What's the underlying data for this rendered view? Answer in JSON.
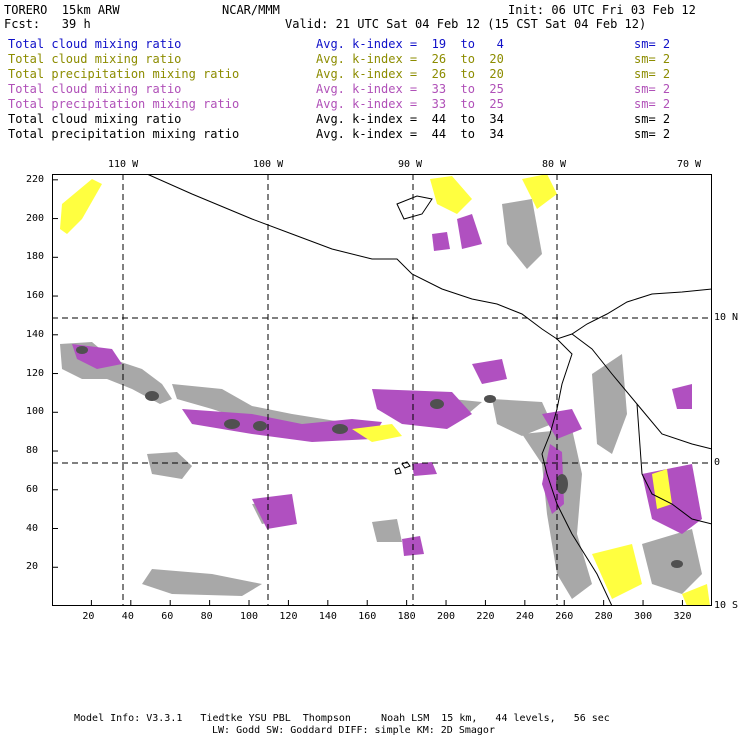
{
  "header": {
    "model": "TORERO  15km ARW",
    "center": "NCAR/MMM",
    "init": "Init: 06 UTC Fri 03 Feb 12",
    "fcst": "Fcst:   39 h",
    "valid": "Valid: 21 UTC Sat 04 Feb 12 (15 CST Sat 04 Feb 12)"
  },
  "legend": [
    {
      "field": "Total cloud mixing ratio",
      "kindex": "Avg. k-index =  19  to   4",
      "sm": "sm= 2",
      "color": "#1010c8"
    },
    {
      "field": "Total cloud mixing ratio",
      "kindex": "Avg. k-index =  26  to  20",
      "sm": "sm= 2",
      "color": "#8c8c00"
    },
    {
      "field": "Total precipitation mixing ratio",
      "kindex": "Avg. k-index =  26  to  20",
      "sm": "sm= 2",
      "color": "#8c8c00"
    },
    {
      "field": "Total cloud mixing ratio",
      "kindex": "Avg. k-index =  33  to  25",
      "sm": "sm= 2",
      "color": "#b050b8"
    },
    {
      "field": "Total precipitation mixing ratio",
      "kindex": "Avg. k-index =  33  to  25",
      "sm": "sm= 2",
      "color": "#b050b8"
    },
    {
      "field": "Total cloud mixing ratio",
      "kindex": "Avg. k-index =  44  to  34",
      "sm": "sm= 2",
      "color": "#000000"
    },
    {
      "field": "Total precipitation mixing ratio",
      "kindex": "Avg. k-index =  44  to  34",
      "sm": "sm= 2",
      "color": "#000000"
    }
  ],
  "axes": {
    "lon_labels": [
      "110 W",
      "100 W",
      "90 W",
      "80 W",
      "70 W"
    ],
    "lat_labels": [
      "10 N",
      "0",
      "10 S"
    ],
    "x_ticks": [
      20,
      40,
      60,
      80,
      100,
      120,
      140,
      160,
      180,
      200,
      220,
      240,
      260,
      280,
      300,
      320
    ],
    "y_ticks": [
      220,
      200,
      180,
      160,
      140,
      120,
      100,
      80,
      60,
      40,
      20
    ],
    "x_range": [
      0,
      335
    ],
    "y_range": [
      0,
      223
    ]
  },
  "colors": {
    "yellow": "#ffff40",
    "purple": "#b050c0",
    "gray": "#a8a8a8",
    "dark": "#505050",
    "cyan": "#bff0f8"
  },
  "footer": {
    "line1": "Model Info: V3.3.1   Tiedtke YSU PBL  Thompson     Noah LSM  15 km,   44 levels,   56 sec",
    "line2": "LW: Godd SW: Goddard DIFF: simple KM: 2D Smagor"
  }
}
